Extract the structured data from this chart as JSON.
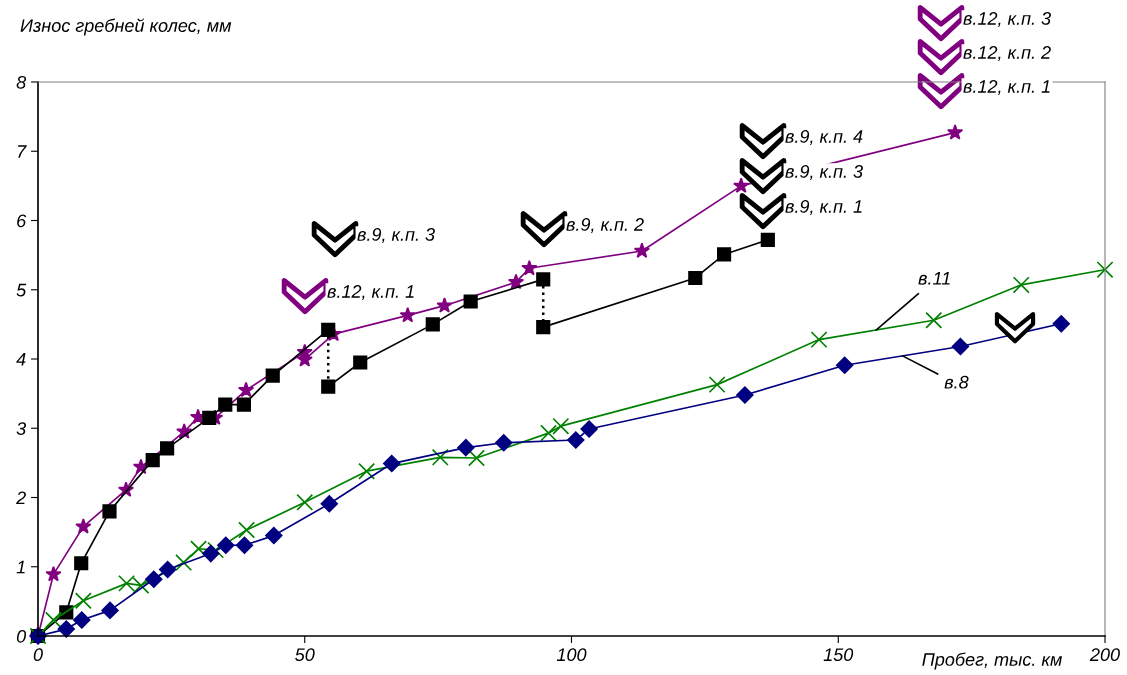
{
  "chart_data": {
    "type": "line",
    "ylabel": "Износ гребней колес, мм",
    "xlabel": "Пробег, тыс. км",
    "xlim": [
      0,
      200
    ],
    "xticks": [
      0,
      50,
      100,
      150,
      200
    ],
    "ylim": [
      0,
      8
    ],
    "yticks": [
      0,
      1,
      2,
      3,
      4,
      5,
      6,
      7,
      8
    ],
    "grid": false,
    "line_style": "solid",
    "series": [
      {
        "color": "#800080",
        "marker": "star",
        "x": [
          0,
          2.9,
          8.5,
          16.5,
          19.3,
          27.4,
          30.0,
          33.2,
          39.0,
          50.0,
          50.0,
          55.4,
          69.3,
          76.2,
          89.6,
          92.1,
          113.2,
          131.8,
          171.9
        ],
        "values": [
          0,
          0.89,
          1.58,
          2.11,
          2.44,
          2.95,
          3.16,
          3.15,
          3.55,
          4.1,
          3.99,
          4.36,
          4.63,
          4.77,
          5.11,
          5.31,
          5.56,
          6.5,
          7.27
        ]
      },
      {
        "color": "#000000",
        "marker": "square",
        "x": [
          0,
          5.3,
          8.1,
          13.4,
          21.5,
          24.2,
          32.1,
          35.1,
          38.6,
          44.0,
          54.4,
          54.4,
          60.4,
          74.0,
          81.1,
          94.7,
          94.7,
          123.2,
          128.6,
          136.8
        ],
        "values": [
          0,
          0.34,
          1.05,
          1.8,
          2.54,
          2.71,
          3.15,
          3.34,
          3.34,
          3.76,
          4.42,
          3.6,
          3.95,
          4.5,
          4.83,
          5.15,
          4.46,
          5.17,
          5.51,
          5.72
        ]
      },
      {
        "name": "в.11",
        "color": "#008000",
        "marker": "cross",
        "x": [
          0,
          2.9,
          8.5,
          16.6,
          19.3,
          27.3,
          30.1,
          33.3,
          39.1,
          50.0,
          61.6,
          75.4,
          82.2,
          95.7,
          98.0,
          127.3,
          146.4,
          167.9,
          184.3,
          200
        ],
        "values": [
          0,
          0.23,
          0.51,
          0.76,
          0.73,
          1.06,
          1.26,
          1.24,
          1.53,
          1.93,
          2.38,
          2.58,
          2.57,
          2.93,
          3.03,
          3.63,
          4.28,
          4.56,
          5.07,
          5.29
        ]
      },
      {
        "name": "в.8",
        "color": "#000080",
        "marker": "diamond",
        "x": [
          0,
          5.3,
          8.2,
          13.5,
          21.7,
          24.3,
          32.4,
          35.2,
          38.7,
          44.2,
          54.6,
          66.3,
          80.2,
          87.3,
          100.8,
          103.3,
          132.5,
          151.2,
          172.9,
          191.8
        ],
        "values": [
          0,
          0.1,
          0.23,
          0.37,
          0.82,
          0.96,
          1.19,
          1.31,
          1.31,
          1.45,
          1.91,
          2.49,
          2.72,
          2.79,
          2.83,
          2.99,
          3.48,
          3.91,
          4.18,
          4.51
        ]
      }
    ],
    "annotations": [
      "в.9, к.п. 3",
      "в.12, к.п. 1",
      "в.9, к.п. 2",
      "в.9, к.п. 4",
      "в.9, к.п. 3",
      "в.9, к.п. 1",
      "в.12, к.п. 3",
      "в.12, к.п. 2",
      "в.12, к.п. 1"
    ]
  }
}
